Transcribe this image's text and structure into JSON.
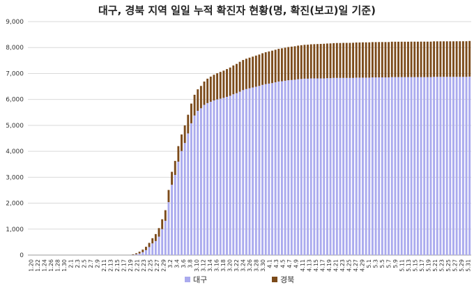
{
  "chart_data": {
    "type": "bar",
    "stacked": true,
    "title": "대구, 경북 지역 일일 누적 확진자 현황(명, 확진(보고)일 기준)",
    "xlabel": "",
    "ylabel": "",
    "ylim": [
      0,
      9000
    ],
    "yticks": [
      "0",
      "1,000",
      "2,000",
      "3,000",
      "4,000",
      "5,000",
      "6,000",
      "7,000",
      "8,000",
      "9,000"
    ],
    "grid": true,
    "legend_position": "bottom",
    "date_start": "1.20",
    "date_end": "5.31",
    "xtick_labels": [
      "1.20",
      "1.22",
      "1.24",
      "1.26",
      "1.28",
      "1.30",
      "2.1",
      "2.3",
      "2.5",
      "2.7",
      "2.9",
      "2.11",
      "2.13",
      "2.15",
      "2.17",
      "2.19",
      "2.21",
      "2.23",
      "2.25",
      "2.27",
      "2.29",
      "3.2",
      "3.4",
      "3.6",
      "3.8",
      "3.10",
      "3.12",
      "3.14",
      "3.16",
      "3.18",
      "3.20",
      "3.22",
      "3.24",
      "3.26",
      "3.28",
      "3.30",
      "4.1",
      "4.3",
      "4.5",
      "4.7",
      "4.9",
      "4.11",
      "4.13",
      "4.15",
      "4.17",
      "4.19",
      "4.21",
      "4.23",
      "4.25",
      "4.27",
      "4.29",
      "5.1",
      "5.3",
      "5.5",
      "5.7",
      "5.9",
      "5.11",
      "5.13",
      "5.15",
      "5.17",
      "5.19",
      "5.21",
      "5.23",
      "5.25",
      "5.27",
      "5.29",
      "5.31"
    ],
    "series": [
      {
        "name": "대구",
        "color": "#aaaaee",
        "values": [
          0,
          0,
          0,
          0,
          0,
          0,
          0,
          0,
          0,
          0,
          0,
          0,
          0,
          0,
          0,
          0,
          0,
          0,
          0,
          0,
          0,
          0,
          0,
          0,
          0,
          0,
          0,
          0,
          0,
          0,
          0,
          0,
          10,
          30,
          60,
          110,
          190,
          310,
          450,
          540,
          710,
          1000,
          1320,
          2040,
          2710,
          3090,
          3600,
          4010,
          4320,
          4690,
          5080,
          5380,
          5560,
          5660,
          5790,
          5860,
          5910,
          5960,
          6000,
          6030,
          6060,
          6100,
          6140,
          6200,
          6240,
          6300,
          6360,
          6400,
          6430,
          6460,
          6490,
          6520,
          6560,
          6590,
          6610,
          6630,
          6660,
          6690,
          6700,
          6720,
          6740,
          6750,
          6760,
          6780,
          6790,
          6800,
          6800,
          6810,
          6810,
          6810,
          6810,
          6810,
          6820,
          6820,
          6830,
          6830,
          6830,
          6830,
          6830,
          6830,
          6830,
          6840,
          6840,
          6840,
          6840,
          6840,
          6850,
          6850,
          6850,
          6850,
          6850,
          6850,
          6860,
          6860,
          6860,
          6860,
          6860,
          6860,
          6860,
          6860,
          6860,
          6860,
          6860,
          6860,
          6860,
          6870,
          6870,
          6870,
          6870,
          6870,
          6870,
          6870,
          6870,
          6870,
          6870,
          6870,
          6880
        ]
      },
      {
        "name": "경북",
        "color": "#7b4a1a",
        "values": [
          0,
          0,
          0,
          0,
          0,
          0,
          0,
          0,
          0,
          0,
          0,
          0,
          0,
          0,
          0,
          0,
          0,
          0,
          0,
          0,
          0,
          0,
          0,
          0,
          0,
          0,
          0,
          0,
          0,
          0,
          0,
          0,
          20,
          40,
          70,
          100,
          130,
          160,
          200,
          270,
          330,
          380,
          410,
          470,
          500,
          540,
          600,
          640,
          680,
          720,
          760,
          800,
          830,
          860,
          900,
          940,
          970,
          990,
          1010,
          1030,
          1050,
          1070,
          1090,
          1110,
          1130,
          1150,
          1160,
          1170,
          1180,
          1190,
          1200,
          1210,
          1220,
          1230,
          1240,
          1250,
          1255,
          1260,
          1270,
          1275,
          1280,
          1285,
          1290,
          1295,
          1300,
          1305,
          1310,
          1315,
          1320,
          1325,
          1330,
          1335,
          1335,
          1340,
          1340,
          1345,
          1345,
          1350,
          1350,
          1350,
          1355,
          1355,
          1355,
          1360,
          1360,
          1360,
          1360,
          1360,
          1362,
          1362,
          1362,
          1362,
          1365,
          1365,
          1365,
          1365,
          1365,
          1365,
          1367,
          1367,
          1367,
          1368,
          1368,
          1368,
          1368,
          1369,
          1369,
          1369,
          1370,
          1370,
          1370,
          1370,
          1372,
          1372,
          1373,
          1373,
          1373,
          1373,
          1373,
          1375
        ]
      }
    ]
  }
}
